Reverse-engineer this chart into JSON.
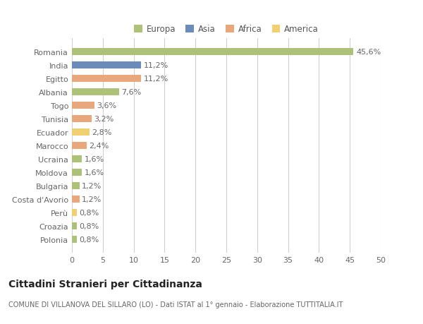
{
  "countries": [
    "Romania",
    "India",
    "Egitto",
    "Albania",
    "Togo",
    "Tunisia",
    "Ecuador",
    "Marocco",
    "Ucraina",
    "Moldova",
    "Bulgaria",
    "Costa d'Avorio",
    "Perù",
    "Croazia",
    "Polonia"
  ],
  "values": [
    45.6,
    11.2,
    11.2,
    7.6,
    3.6,
    3.2,
    2.8,
    2.4,
    1.6,
    1.6,
    1.2,
    1.2,
    0.8,
    0.8,
    0.8
  ],
  "labels": [
    "45,6%",
    "11,2%",
    "11,2%",
    "7,6%",
    "3,6%",
    "3,2%",
    "2,8%",
    "2,4%",
    "1,6%",
    "1,6%",
    "1,2%",
    "1,2%",
    "0,8%",
    "0,8%",
    "0,8%"
  ],
  "continents": [
    "Europa",
    "Asia",
    "Africa",
    "Europa",
    "Africa",
    "Africa",
    "America",
    "Africa",
    "Europa",
    "Europa",
    "Europa",
    "Africa",
    "America",
    "Europa",
    "Europa"
  ],
  "continent_colors": {
    "Europa": "#adc178",
    "Asia": "#6b8cba",
    "Africa": "#e8a87c",
    "America": "#f0d070"
  },
  "legend_order": [
    "Europa",
    "Asia",
    "Africa",
    "America"
  ],
  "legend_colors": [
    "#adc178",
    "#6b8cba",
    "#e8a87c",
    "#f0d070"
  ],
  "title": "Cittadini Stranieri per Cittadinanza",
  "subtitle": "COMUNE DI VILLANOVA DEL SILLARO (LO) - Dati ISTAT al 1° gennaio - Elaborazione TUTTITALIA.IT",
  "xlim": [
    0,
    50
  ],
  "xticks": [
    0,
    5,
    10,
    15,
    20,
    25,
    30,
    35,
    40,
    45,
    50
  ],
  "bg_color": "#ffffff",
  "grid_color": "#d0d0d0",
  "bar_height": 0.55,
  "label_fontsize": 8,
  "tick_fontsize": 8,
  "title_fontsize": 10,
  "subtitle_fontsize": 7
}
